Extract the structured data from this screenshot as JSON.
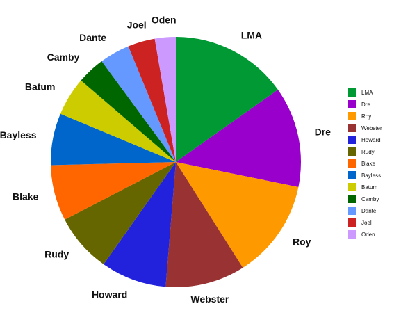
{
  "chart_data": {
    "type": "pie",
    "categories": [
      "LMA",
      "Dre",
      "Roy",
      "Webster",
      "Howard",
      "Rudy",
      "Blake",
      "Bayless",
      "Batum",
      "Camby",
      "Dante",
      "Joel",
      "Oden"
    ],
    "values": [
      15.2,
      13,
      12.8,
      10.3,
      8.5,
      7.6,
      7.2,
      6.7,
      5,
      3.6,
      3.9,
      3.5,
      2.7
    ],
    "colors": [
      "#009933",
      "#9900cc",
      "#ff9900",
      "#993333",
      "#2222dd",
      "#666600",
      "#ff6600",
      "#0066cc",
      "#cccc00",
      "#006600",
      "#6699ff",
      "#cc2222",
      "#cc99ff"
    ],
    "legend": "right"
  }
}
